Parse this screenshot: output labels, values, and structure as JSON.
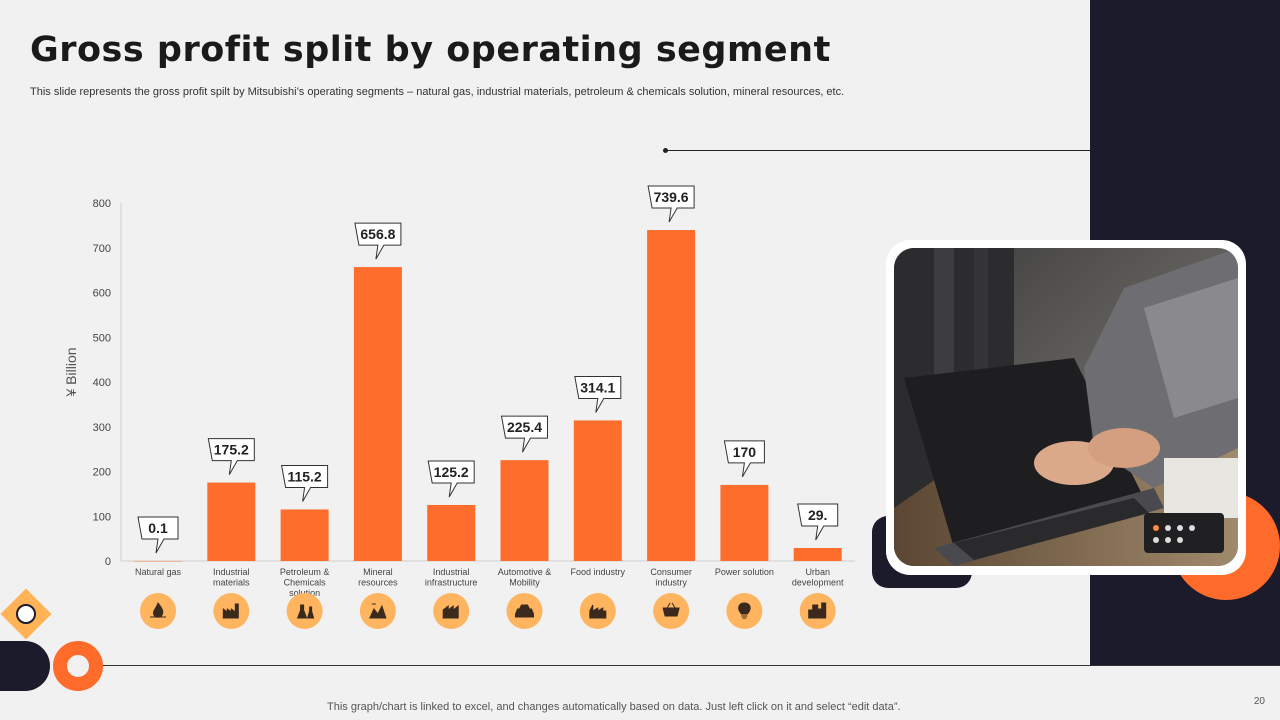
{
  "slide": {
    "title": "Gross profit split by operating segment",
    "subtitle": "This slide represents the gross profit spilt by Mitsubishi’s operating segments – natural gas, industrial materials, petroleum & chemicals solution, mineral resources, etc.",
    "footnote": "This graph/chart is linked to excel,  and changes automatically based on data. Just left click on it and select “edit data”.",
    "page_number": "20"
  },
  "colors": {
    "bar": "#ff6d2c",
    "icon_circle": "#ffb45f",
    "navy": "#1c1b2b",
    "accent_orange": "#ff6b2b"
  },
  "chart_data": {
    "type": "bar",
    "title": "",
    "xlabel": "",
    "ylabel": "¥ Billion",
    "ylim": [
      0,
      800
    ],
    "yticks": [
      0,
      100,
      200,
      300,
      400,
      500,
      600,
      700,
      800
    ],
    "grid": false,
    "categories": [
      "Natural gas",
      "Industrial materials",
      "Petroleum & Chemicals solution",
      "Mineral resources",
      "Industrial infrastructure",
      "Automotive & Mobility",
      "Food industry",
      "Consumer industry",
      "Power solution",
      "Urban development"
    ],
    "category_lines": [
      [
        "Natural gas"
      ],
      [
        "Industrial",
        "materials"
      ],
      [
        "Petroleum &",
        "Chemicals",
        "solution"
      ],
      [
        "Mineral",
        "resources"
      ],
      [
        "Industrial",
        "infrastructure"
      ],
      [
        "Automotive &",
        "Mobility"
      ],
      [
        "Food industry"
      ],
      [
        "Consumer",
        "industry"
      ],
      [
        "Power solution"
      ],
      [
        "Urban",
        "development"
      ]
    ],
    "values": [
      0.1,
      175.2,
      115.2,
      656.8,
      125.2,
      225.4,
      314.1,
      739.6,
      170,
      29
    ],
    "data_labels": [
      "0.1",
      "175.2",
      "115.2",
      "656.8",
      "125.2",
      "225.4",
      "314.1",
      "739.6",
      "170",
      "29."
    ],
    "icons": [
      "flame-icon",
      "factory-icon",
      "chemicals-icon",
      "mining-icon",
      "infrastructure-icon",
      "car-icon",
      "food-factory-icon",
      "shopping-basket-icon",
      "lightbulb-icon",
      "city-icon"
    ]
  }
}
